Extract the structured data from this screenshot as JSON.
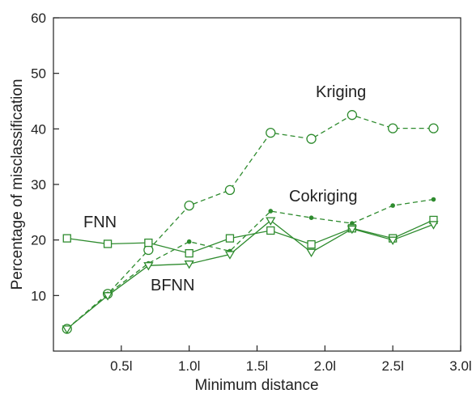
{
  "chart_data": {
    "type": "line",
    "xlabel": "Minimum distance",
    "ylabel": "Percentage of misclassification",
    "xlim": [
      0,
      3.0
    ],
    "ylim": [
      0,
      60
    ],
    "x_ticks": [
      0.5,
      1.0,
      1.5,
      2.0,
      2.5,
      3.0
    ],
    "x_tick_labels": [
      "0.5l",
      "1.0l",
      "1.5l",
      "2.0l",
      "2.5l",
      "3.0l"
    ],
    "y_ticks": [
      10,
      20,
      30,
      40,
      50,
      60
    ],
    "y_tick_labels": [
      "10",
      "20",
      "30",
      "40",
      "50",
      "60"
    ],
    "grid": false,
    "line_color": "#2e8b2e",
    "series": [
      {
        "name": "Kriging",
        "marker": "circle",
        "dash": "dashed",
        "x": [
          0.1,
          0.4,
          0.7,
          1.0,
          1.3,
          1.6,
          1.9,
          2.2,
          2.5,
          2.8
        ],
        "y": [
          4,
          10.3,
          18.2,
          26.2,
          29,
          39.3,
          38.2,
          42.5,
          40.1,
          40.1
        ]
      },
      {
        "name": "Cokriging",
        "marker": "dot",
        "dash": "dashed",
        "x": [
          0.1,
          0.4,
          0.7,
          1.0,
          1.3,
          1.6,
          1.9,
          2.2,
          2.5,
          2.8
        ],
        "y": [
          4,
          10.3,
          15.8,
          19.7,
          18,
          25.2,
          24,
          23,
          26.2,
          27.3
        ]
      },
      {
        "name": "FNN",
        "marker": "square",
        "dash": "solid",
        "x": [
          0.1,
          0.4,
          0.7,
          1.0,
          1.3,
          1.6,
          1.9,
          2.2,
          2.5,
          2.8
        ],
        "y": [
          20.3,
          19.3,
          19.5,
          17.6,
          20.3,
          21.7,
          19.2,
          22.1,
          20.3,
          23.6
        ]
      },
      {
        "name": "BFNN",
        "marker": "triangle",
        "dash": "solid",
        "x": [
          0.1,
          0.4,
          0.7,
          1.0,
          1.3,
          1.6,
          1.9,
          2.2,
          2.5,
          2.8
        ],
        "y": [
          4,
          10,
          15.4,
          15.7,
          17.4,
          23.5,
          17.8,
          22,
          20,
          22.8
        ]
      }
    ]
  }
}
